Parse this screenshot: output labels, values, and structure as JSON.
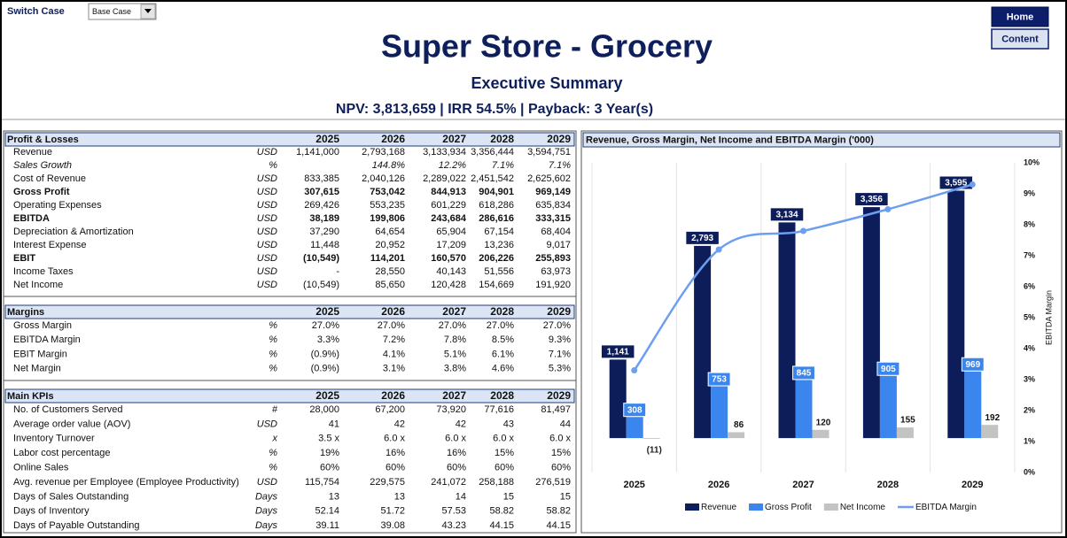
{
  "header": {
    "switch_case_label": "Switch Case",
    "case_selector": "Base Case",
    "buttons": [
      "Home",
      "Content"
    ],
    "title": "Super Store - Grocery",
    "subtitle": "Executive Summary",
    "metrics": "NPV: 3,813,659 | IRR 54.5% | Payback: 3 Year(s)"
  },
  "tables": [
    {
      "header": [
        "Profit & Losses",
        "2025",
        "2026",
        "2027",
        "2028",
        "2029"
      ],
      "rows": [
        [
          "Revenue",
          "USD",
          "1,141,000",
          "2,793,168",
          "3,133,934",
          "3,356,444",
          "3,594,751"
        ],
        [
          "Sales Growth",
          "%",
          null,
          "144.8%",
          "12.2%",
          "7.1%",
          "7.1%"
        ],
        [
          "Cost of Revenue",
          "USD",
          "833,385",
          "2,040,126",
          "2,289,022",
          "2,451,542",
          "2,625,602"
        ],
        [
          "Gross Profit",
          "USD",
          "307,615",
          "753,042",
          "844,913",
          "904,901",
          "969,149"
        ],
        [
          "Operating Expenses",
          "USD",
          "269,426",
          "553,235",
          "601,229",
          "618,286",
          "635,834"
        ],
        [
          "EBITDA",
          "USD",
          "38,189",
          "199,806",
          "243,684",
          "286,616",
          "333,315"
        ],
        [
          "Depreciation & Amortization",
          "USD",
          "37,290",
          "64,654",
          "65,904",
          "67,154",
          "68,404"
        ],
        [
          "Interest Expense",
          "USD",
          "11,448",
          "20,952",
          "17,209",
          "13,236",
          "9,017"
        ],
        [
          "EBIT",
          "USD",
          "(10,549)",
          "114,201",
          "160,570",
          "206,226",
          "255,893"
        ],
        [
          "Income Taxes",
          "USD",
          "-",
          "28,550",
          "40,143",
          "51,556",
          "63,973"
        ],
        [
          "Net Income",
          "USD",
          "(10,549)",
          "85,650",
          "120,428",
          "154,669",
          "191,920"
        ]
      ]
    },
    {
      "header": [
        "Margins",
        "2025",
        "2026",
        "2027",
        "2028",
        "2029"
      ],
      "rows": [
        [
          "Gross Margin",
          "%",
          "27.0%",
          "27.0%",
          "27.0%",
          "27.0%",
          "27.0%"
        ],
        [
          "EBITDA Margin",
          "%",
          "3.3%",
          "7.2%",
          "7.8%",
          "8.5%",
          "9.3%"
        ],
        [
          "EBIT Margin",
          "%",
          "(0.9%)",
          "4.1%",
          "5.1%",
          "6.1%",
          "7.1%"
        ],
        [
          "Net Margin",
          "%",
          "(0.9%)",
          "3.1%",
          "3.8%",
          "4.6%",
          "5.3%"
        ]
      ]
    },
    {
      "header": [
        "Main KPIs",
        "2025",
        "2026",
        "2027",
        "2028",
        "2029"
      ],
      "rows": [
        [
          "No. of Customers Served",
          "#",
          "28,000",
          "67,200",
          "73,920",
          "77,616",
          "81,497"
        ],
        [
          "Average order value (AOV)",
          "USD",
          "41",
          "42",
          "42",
          "43",
          "44"
        ],
        [
          "Inventory Turnover",
          "x",
          "3.5 x",
          "6.0 x",
          "6.0 x",
          "6.0 x",
          "6.0 x"
        ],
        [
          "Labor cost percentage",
          "%",
          "19%",
          "16%",
          "16%",
          "15%",
          "15%"
        ],
        [
          "Online Sales",
          "%",
          "60%",
          "60%",
          "60%",
          "60%",
          "60%"
        ],
        [
          "Avg. revenue per Employee (Employee Productivity)",
          "USD",
          "115,754",
          "229,575",
          "241,072",
          "258,188",
          "276,519"
        ],
        [
          "Days of Sales Outstanding",
          "Days",
          "13",
          "13",
          "14",
          "15",
          "15"
        ],
        [
          "Days of Inventory",
          "Days",
          "52.14",
          "51.72",
          "57.53",
          "58.82",
          "58.82"
        ],
        [
          "Days of Payable Outstanding",
          "Days",
          "39.11",
          "39.08",
          "43.23",
          "44.15",
          "44.15"
        ]
      ]
    }
  ],
  "chart_data": {
    "type": "combo",
    "title": "Revenue, Gross Margin, Net Income and EBITDA Margin ('000)",
    "categories": [
      "2025",
      "2026",
      "2027",
      "2028",
      "2029"
    ],
    "series": [
      {
        "name": "Revenue",
        "type": "bar",
        "color": "#0c1d5a",
        "values": [
          1141,
          2793,
          3134,
          3356,
          3595
        ],
        "value_labels": [
          "1,141",
          "2,793",
          "3,134",
          "3,356",
          "3,595"
        ]
      },
      {
        "name": "Gross Profit",
        "type": "bar",
        "color": "#3b86ee",
        "values": [
          308,
          753,
          845,
          905,
          969
        ]
      },
      {
        "name": "Net Income",
        "type": "bar",
        "color": "#c3c3c3",
        "values": [
          -11,
          86,
          120,
          155,
          192
        ],
        "value_labels": [
          "(11)",
          "86",
          "120",
          "155",
          "192"
        ]
      },
      {
        "name": "EBITDA Margin",
        "type": "line",
        "axis": "y2",
        "color": "#6d9ff0",
        "values": [
          3.3,
          7.2,
          7.8,
          8.5,
          9.3
        ]
      }
    ],
    "ylim": [
      -500,
      4000
    ],
    "y2lim": [
      0,
      10
    ],
    "y2ticks": [
      {
        "value": 0,
        "label": "0%"
      },
      {
        "value": 1,
        "label": "1%"
      },
      {
        "value": 2,
        "label": "2%"
      },
      {
        "value": 3,
        "label": "3%"
      },
      {
        "value": 4,
        "label": "4%"
      },
      {
        "value": 5,
        "label": "5%"
      },
      {
        "value": 6,
        "label": "6%"
      },
      {
        "value": 7,
        "label": "7%"
      },
      {
        "value": 8,
        "label": "8%"
      },
      {
        "value": 9,
        "label": "9%"
      },
      {
        "value": 10,
        "label": "10%"
      }
    ],
    "y2label": "EBITDA Margin",
    "legend": "bottom"
  }
}
